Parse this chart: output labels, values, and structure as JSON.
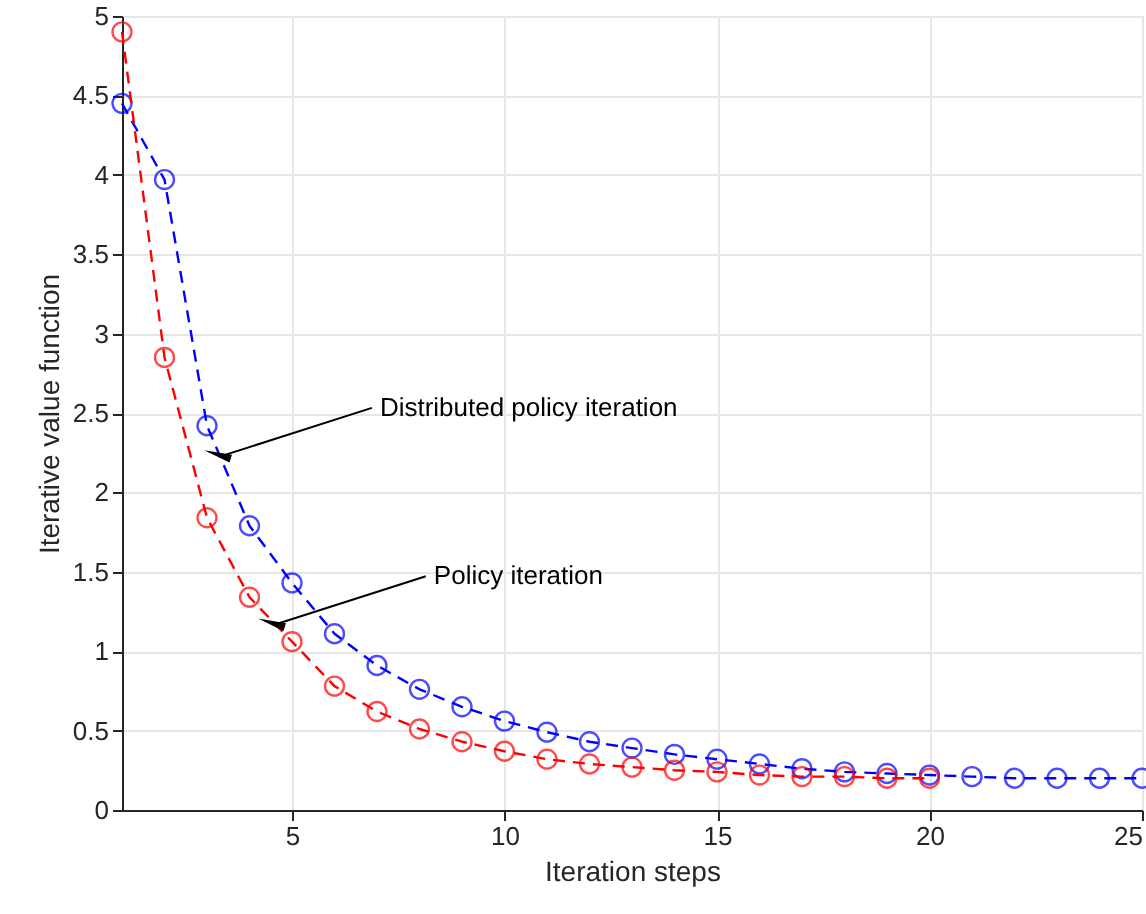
{
  "chart_data": {
    "type": "line",
    "xlabel": "Iteration steps",
    "ylabel": "Iterative value function",
    "xlim": [
      1,
      25
    ],
    "xticks": [
      5,
      10,
      15,
      20,
      25
    ],
    "ylim": [
      0,
      5
    ],
    "yticks": [
      0,
      0.5,
      1,
      1.5,
      2,
      2.5,
      3,
      3.5,
      4,
      4.5,
      5
    ],
    "grid": true,
    "marker": "circle",
    "line_style": "dashed",
    "series": [
      {
        "color": "#0000ff",
        "x": [
          1,
          2,
          3,
          4,
          5,
          6,
          7,
          8,
          9,
          10,
          11,
          12,
          13,
          14,
          15,
          16,
          17,
          18,
          19,
          20,
          21,
          22,
          23,
          24,
          25
        ],
        "values": [
          4.45,
          3.97,
          2.42,
          1.79,
          1.43,
          1.11,
          0.91,
          0.76,
          0.65,
          0.56,
          0.49,
          0.43,
          0.39,
          0.35,
          0.32,
          0.29,
          0.26,
          0.24,
          0.23,
          0.22,
          0.21,
          0.2,
          0.2,
          0.2,
          0.2
        ]
      },
      {
        "color": "#ff0000",
        "x": [
          1,
          2,
          3,
          4,
          5,
          6,
          7,
          8,
          9,
          10,
          11,
          12,
          13,
          14,
          15,
          16,
          17,
          18,
          19,
          20
        ],
        "values": [
          4.9,
          2.85,
          1.84,
          1.34,
          1.06,
          0.78,
          0.62,
          0.51,
          0.43,
          0.37,
          0.32,
          0.29,
          0.27,
          0.25,
          0.24,
          0.22,
          0.21,
          0.21,
          0.2,
          0.2
        ]
      }
    ],
    "annotations": [
      {
        "text": "Distributed policy iteration",
        "x": 3.35,
        "y": 2.23
      },
      {
        "text": "Policy iteration",
        "x": 4.62,
        "y": 1.17
      }
    ]
  }
}
